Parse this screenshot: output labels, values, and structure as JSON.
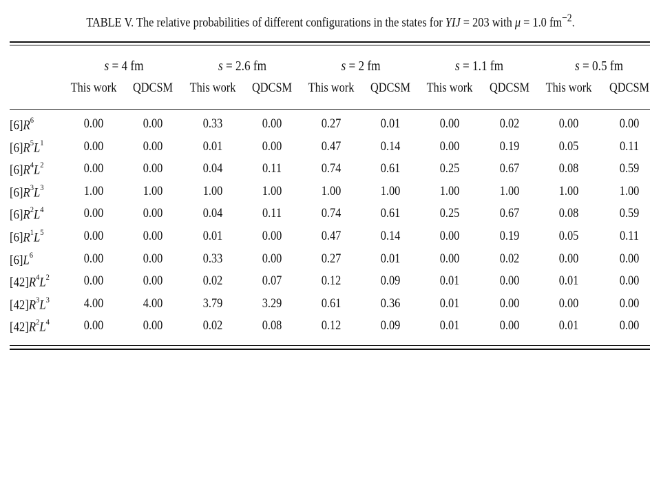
{
  "caption": {
    "prefix": "TABLE V.  The relative probabilities of different configurations in the states for ",
    "var": "YIJ",
    "mid": " = 203 with ",
    "mu": "μ",
    "suffix": " = 1.0 fm",
    "exp": "−2",
    "end": "."
  },
  "groups": [
    {
      "var": "s",
      "label": " = 4 fm"
    },
    {
      "var": "s",
      "label": " = 2.6 fm"
    },
    {
      "var": "s",
      "label": " = 2 fm"
    },
    {
      "var": "s",
      "label": " = 1.1 fm"
    },
    {
      "var": "s",
      "label": " = 0.5 fm"
    }
  ],
  "subheaders": [
    "This work",
    "QDCSM",
    "This work",
    "QDCSM",
    "This work",
    "QDCSM",
    "This work",
    "QDCSM",
    "This work",
    "QDCSM"
  ],
  "rows": [
    {
      "label_parts": [
        [
          "[6]",
          ""
        ],
        [
          "R",
          "6"
        ]
      ],
      "values": [
        "0.00",
        "0.00",
        "0.33",
        "0.00",
        "0.27",
        "0.01",
        "0.00",
        "0.02",
        "0.00",
        "0.00"
      ]
    },
    {
      "label_parts": [
        [
          "[6]",
          ""
        ],
        [
          "R",
          "5"
        ],
        [
          "L",
          "1"
        ]
      ],
      "values": [
        "0.00",
        "0.00",
        "0.01",
        "0.00",
        "0.47",
        "0.14",
        "0.00",
        "0.19",
        "0.05",
        "0.11"
      ]
    },
    {
      "label_parts": [
        [
          "[6]",
          ""
        ],
        [
          "R",
          "4"
        ],
        [
          "L",
          "2"
        ]
      ],
      "values": [
        "0.00",
        "0.00",
        "0.04",
        "0.11",
        "0.74",
        "0.61",
        "0.25",
        "0.67",
        "0.08",
        "0.59"
      ]
    },
    {
      "label_parts": [
        [
          "[6]",
          ""
        ],
        [
          "R",
          "3"
        ],
        [
          "L",
          "3"
        ]
      ],
      "values": [
        "1.00",
        "1.00",
        "1.00",
        "1.00",
        "1.00",
        "1.00",
        "1.00",
        "1.00",
        "1.00",
        "1.00"
      ]
    },
    {
      "label_parts": [
        [
          "[6]",
          ""
        ],
        [
          "R",
          "2"
        ],
        [
          "L",
          "4"
        ]
      ],
      "values": [
        "0.00",
        "0.00",
        "0.04",
        "0.11",
        "0.74",
        "0.61",
        "0.25",
        "0.67",
        "0.08",
        "0.59"
      ]
    },
    {
      "label_parts": [
        [
          "[6]",
          ""
        ],
        [
          "R",
          "1"
        ],
        [
          "L",
          "5"
        ]
      ],
      "values": [
        "0.00",
        "0.00",
        "0.01",
        "0.00",
        "0.47",
        "0.14",
        "0.00",
        "0.19",
        "0.05",
        "0.11"
      ]
    },
    {
      "label_parts": [
        [
          "[6]",
          ""
        ],
        [
          "L",
          "6"
        ]
      ],
      "values": [
        "0.00",
        "0.00",
        "0.33",
        "0.00",
        "0.27",
        "0.01",
        "0.00",
        "0.02",
        "0.00",
        "0.00"
      ]
    },
    {
      "label_parts": [
        [
          "[42]",
          ""
        ],
        [
          "R",
          "4"
        ],
        [
          "L",
          "2"
        ]
      ],
      "values": [
        "0.00",
        "0.00",
        "0.02",
        "0.07",
        "0.12",
        "0.09",
        "0.01",
        "0.00",
        "0.01",
        "0.00"
      ]
    },
    {
      "label_parts": [
        [
          "[42]",
          ""
        ],
        [
          "R",
          "3"
        ],
        [
          "L",
          "3"
        ]
      ],
      "values": [
        "4.00",
        "4.00",
        "3.79",
        "3.29",
        "0.61",
        "0.36",
        "0.01",
        "0.00",
        "0.00",
        "0.00"
      ]
    },
    {
      "label_parts": [
        [
          "[42]",
          ""
        ],
        [
          "R",
          "2"
        ],
        [
          "L",
          "4"
        ]
      ],
      "values": [
        "0.00",
        "0.00",
        "0.02",
        "0.08",
        "0.12",
        "0.09",
        "0.01",
        "0.00",
        "0.01",
        "0.00"
      ]
    }
  ]
}
